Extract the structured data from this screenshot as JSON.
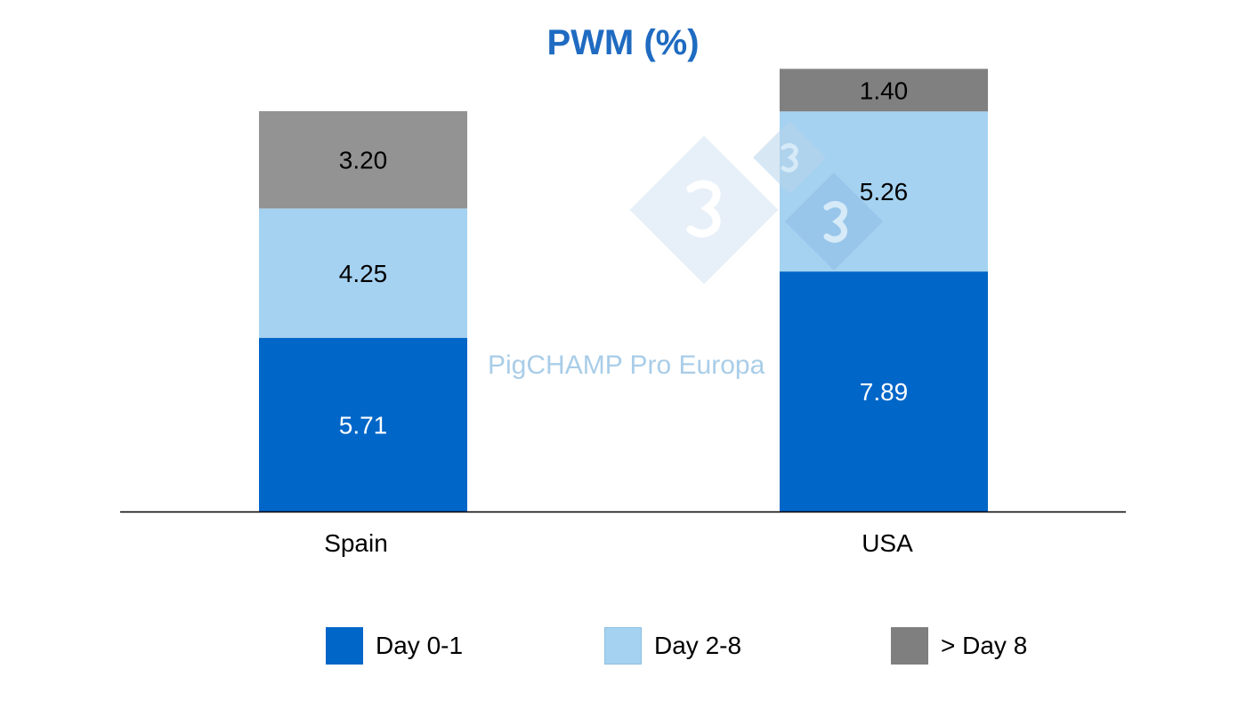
{
  "chart_data": {
    "type": "bar",
    "stacked": true,
    "title": "PWM (%)",
    "xlabel": "",
    "ylabel": "",
    "categories": [
      "Spain",
      "USA"
    ],
    "series": [
      {
        "name": "Day 0-1",
        "values": [
          5.71,
          7.89
        ],
        "color": "#0066c8",
        "label_color": "#ffffff"
      },
      {
        "name": "Day 2-8",
        "values": [
          4.25,
          5.26
        ],
        "color": "#a5d2f0",
        "label_color": "#000000"
      },
      {
        "name": "> Day 8",
        "values": [
          3.2,
          1.4
        ],
        "color": "#808080",
        "bar_colors": [
          "#939393",
          "#808080"
        ],
        "label_color": "#000000"
      }
    ],
    "data_labels": [
      [
        "5.71",
        "7.89"
      ],
      [
        "4.25",
        "5.26"
      ],
      [
        "3.20",
        "1.40"
      ]
    ],
    "ylim": [
      0,
      15
    ],
    "grid": false,
    "y_axis_visible": false,
    "legend_position": "bottom"
  },
  "watermark": {
    "text": "PigCHAMP Pro Europa",
    "logo": "333"
  }
}
